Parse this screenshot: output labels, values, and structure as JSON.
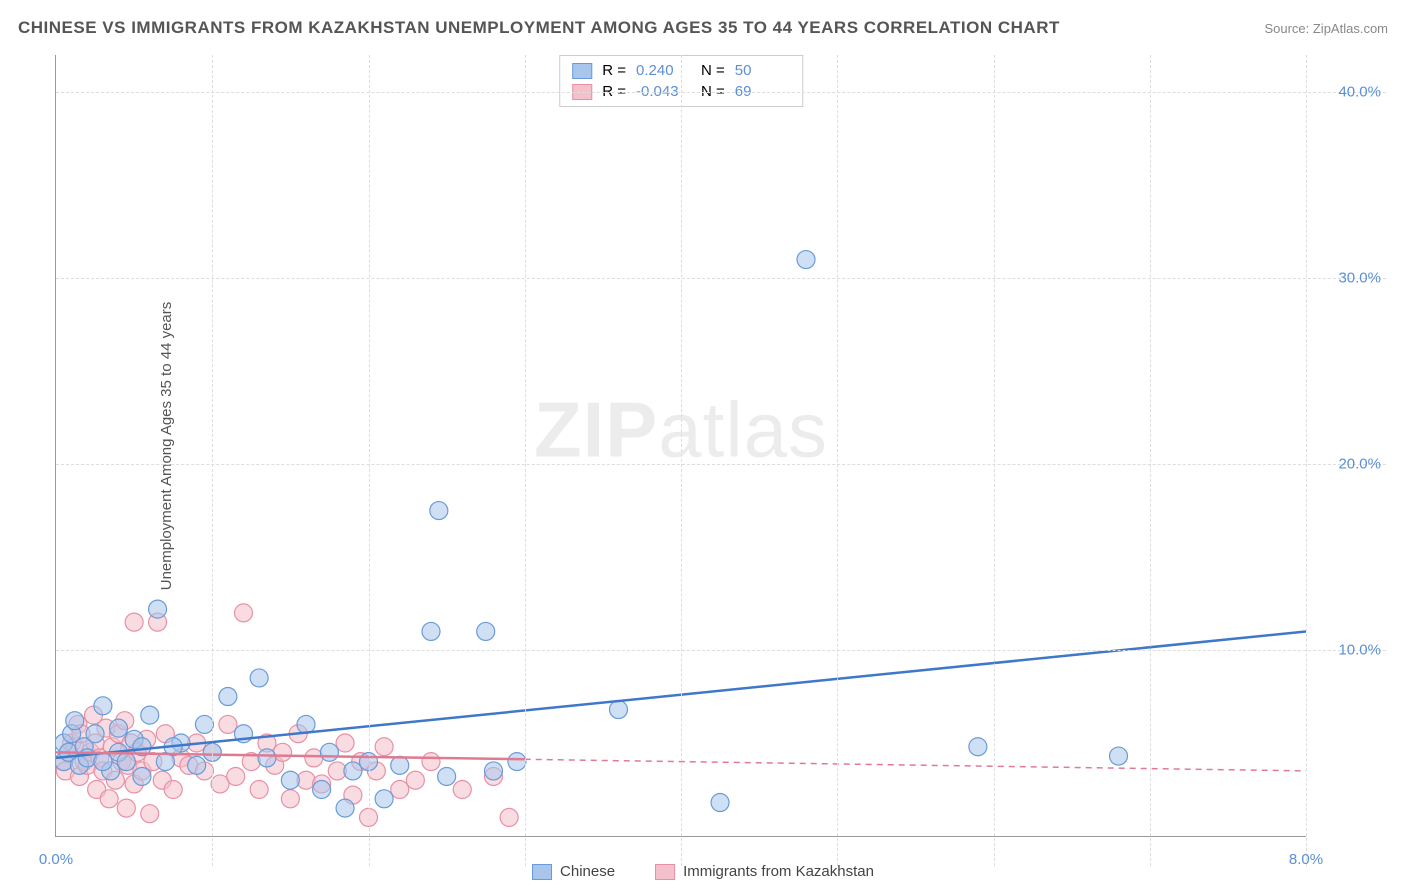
{
  "title": "CHINESE VS IMMIGRANTS FROM KAZAKHSTAN UNEMPLOYMENT AMONG AGES 35 TO 44 YEARS CORRELATION CHART",
  "source": "Source: ZipAtlas.com",
  "ylabel": "Unemployment Among Ages 35 to 44 years",
  "watermark_bold": "ZIP",
  "watermark_light": "atlas",
  "chart": {
    "type": "scatter",
    "xlim": [
      0,
      8
    ],
    "ylim": [
      0,
      42
    ],
    "x_ticks": [
      {
        "pos": 0,
        "label": "0.0%"
      },
      {
        "pos": 8,
        "label": "8.0%"
      }
    ],
    "y_ticks": [
      {
        "pos": 10,
        "label": "10.0%"
      },
      {
        "pos": 20,
        "label": "20.0%"
      },
      {
        "pos": 30,
        "label": "30.0%"
      },
      {
        "pos": 40,
        "label": "40.0%"
      }
    ],
    "y_gridlines": [
      10,
      20,
      30,
      40
    ],
    "x_gridlines": [
      1,
      2,
      3,
      4,
      5,
      6,
      7,
      8
    ],
    "background_color": "#ffffff",
    "grid_color": "#dddddd",
    "axis_color": "#999999"
  },
  "series": [
    {
      "name": "Chinese",
      "color_fill": "#a8c6ec",
      "color_stroke": "#6a9bd8",
      "line_color": "#3f78c8",
      "marker_radius": 9,
      "fill_opacity": 0.55,
      "R_label": "R =",
      "R_value": "0.240",
      "N_label": "N =",
      "N_value": "50",
      "regression": {
        "x1": 0,
        "y1": 4.2,
        "x2": 8,
        "y2": 11.0,
        "solid_until_x": 8
      },
      "points": [
        [
          0.05,
          4.0
        ],
        [
          0.05,
          5.0
        ],
        [
          0.08,
          4.5
        ],
        [
          0.1,
          5.5
        ],
        [
          0.12,
          6.2
        ],
        [
          0.15,
          3.8
        ],
        [
          0.18,
          4.8
        ],
        [
          0.2,
          4.2
        ],
        [
          0.25,
          5.5
        ],
        [
          0.3,
          7.0
        ],
        [
          0.35,
          3.5
        ],
        [
          0.4,
          4.5
        ],
        [
          0.45,
          4.0
        ],
        [
          0.5,
          5.2
        ],
        [
          0.55,
          4.8
        ],
        [
          0.6,
          6.5
        ],
        [
          0.65,
          12.2
        ],
        [
          0.7,
          4.0
        ],
        [
          0.8,
          5.0
        ],
        [
          0.9,
          3.8
        ],
        [
          1.0,
          4.5
        ],
        [
          1.1,
          7.5
        ],
        [
          1.2,
          5.5
        ],
        [
          1.3,
          8.5
        ],
        [
          1.35,
          4.2
        ],
        [
          1.5,
          3.0
        ],
        [
          1.6,
          6.0
        ],
        [
          1.7,
          2.5
        ],
        [
          1.75,
          4.5
        ],
        [
          1.85,
          1.5
        ],
        [
          1.9,
          3.5
        ],
        [
          2.0,
          4.0
        ],
        [
          2.1,
          2.0
        ],
        [
          2.2,
          3.8
        ],
        [
          2.4,
          11.0
        ],
        [
          2.45,
          17.5
        ],
        [
          2.5,
          3.2
        ],
        [
          2.75,
          11.0
        ],
        [
          2.8,
          3.5
        ],
        [
          2.95,
          4.0
        ],
        [
          3.6,
          6.8
        ],
        [
          4.25,
          1.8
        ],
        [
          4.8,
          31.0
        ],
        [
          5.9,
          4.8
        ],
        [
          6.8,
          4.3
        ],
        [
          0.3,
          4.0
        ],
        [
          0.4,
          5.8
        ],
        [
          0.55,
          3.2
        ],
        [
          0.75,
          4.8
        ],
        [
          0.95,
          6.0
        ]
      ]
    },
    {
      "name": "Immigrants from Kazakhstan",
      "color_fill": "#f3c0cb",
      "color_stroke": "#e890a5",
      "line_color": "#e07a92",
      "marker_radius": 9,
      "fill_opacity": 0.55,
      "R_label": "R =",
      "R_value": "-0.043",
      "N_label": "N =",
      "N_value": "69",
      "regression": {
        "x1": 0,
        "y1": 4.5,
        "x2": 8,
        "y2": 3.5,
        "solid_until_x": 3.0
      },
      "points": [
        [
          0.05,
          4.0
        ],
        [
          0.06,
          3.5
        ],
        [
          0.08,
          4.5
        ],
        [
          0.1,
          5.0
        ],
        [
          0.12,
          4.8
        ],
        [
          0.14,
          6.0
        ],
        [
          0.15,
          3.2
        ],
        [
          0.16,
          5.5
        ],
        [
          0.18,
          4.0
        ],
        [
          0.2,
          3.8
        ],
        [
          0.22,
          4.5
        ],
        [
          0.24,
          6.5
        ],
        [
          0.25,
          5.0
        ],
        [
          0.26,
          2.5
        ],
        [
          0.28,
          4.2
        ],
        [
          0.3,
          3.5
        ],
        [
          0.32,
          5.8
        ],
        [
          0.34,
          2.0
        ],
        [
          0.36,
          4.8
        ],
        [
          0.38,
          3.0
        ],
        [
          0.4,
          5.5
        ],
        [
          0.42,
          4.0
        ],
        [
          0.44,
          6.2
        ],
        [
          0.45,
          1.5
        ],
        [
          0.46,
          3.8
        ],
        [
          0.48,
          5.0
        ],
        [
          0.5,
          2.8
        ],
        [
          0.52,
          4.5
        ],
        [
          0.55,
          3.5
        ],
        [
          0.58,
          5.2
        ],
        [
          0.6,
          1.2
        ],
        [
          0.62,
          4.0
        ],
        [
          0.65,
          11.5
        ],
        [
          0.68,
          3.0
        ],
        [
          0.7,
          5.5
        ],
        [
          0.75,
          2.5
        ],
        [
          0.8,
          4.2
        ],
        [
          0.85,
          3.8
        ],
        [
          0.9,
          5.0
        ],
        [
          0.95,
          3.5
        ],
        [
          1.0,
          4.5
        ],
        [
          1.05,
          2.8
        ],
        [
          1.1,
          6.0
        ],
        [
          1.15,
          3.2
        ],
        [
          1.2,
          12.0
        ],
        [
          1.25,
          4.0
        ],
        [
          1.3,
          2.5
        ],
        [
          1.35,
          5.0
        ],
        [
          1.4,
          3.8
        ],
        [
          1.45,
          4.5
        ],
        [
          1.5,
          2.0
        ],
        [
          1.55,
          5.5
        ],
        [
          1.6,
          3.0
        ],
        [
          1.65,
          4.2
        ],
        [
          1.7,
          2.8
        ],
        [
          1.8,
          3.5
        ],
        [
          1.85,
          5.0
        ],
        [
          1.9,
          2.2
        ],
        [
          1.95,
          4.0
        ],
        [
          2.0,
          1.0
        ],
        [
          2.05,
          3.5
        ],
        [
          2.1,
          4.8
        ],
        [
          2.2,
          2.5
        ],
        [
          2.3,
          3.0
        ],
        [
          2.4,
          4.0
        ],
        [
          2.6,
          2.5
        ],
        [
          2.8,
          3.2
        ],
        [
          2.9,
          1.0
        ],
        [
          0.5,
          11.5
        ]
      ]
    }
  ],
  "legend": {
    "series1": "Chinese",
    "series2": "Immigrants from Kazakhstan"
  }
}
